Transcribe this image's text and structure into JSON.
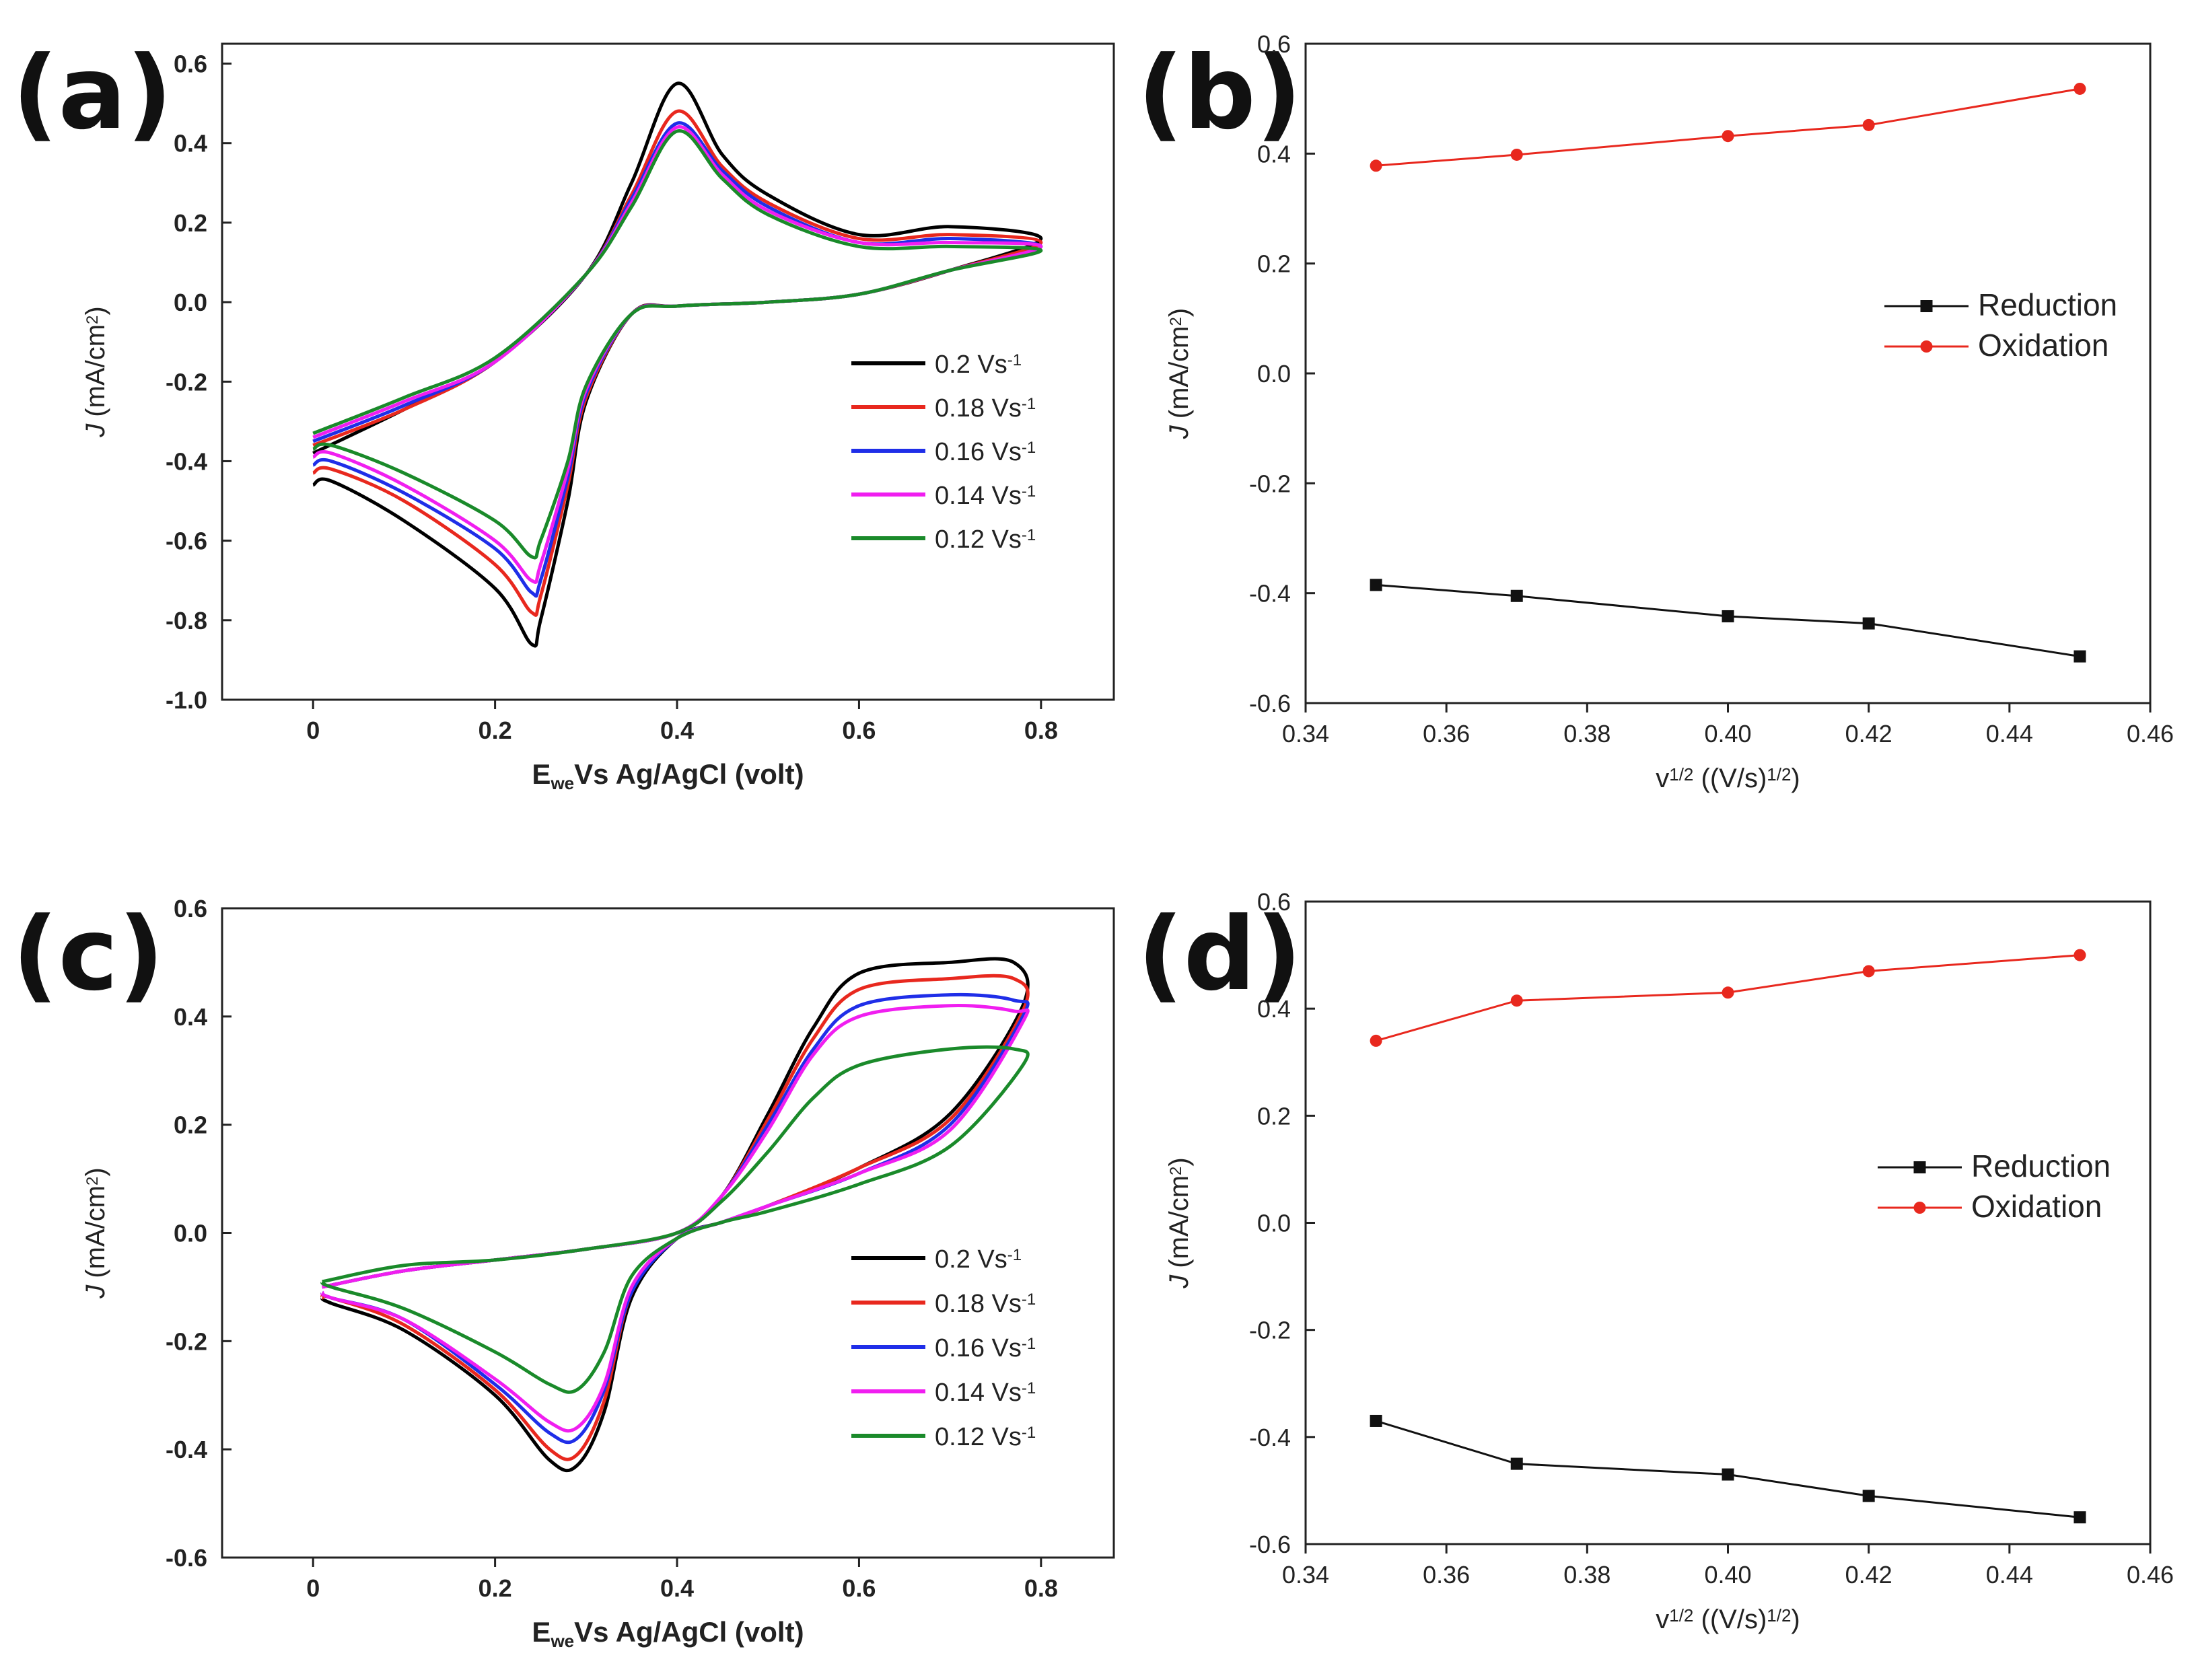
{
  "chart_data": [
    {
      "panel": "(a)",
      "type": "line",
      "subtype": "cyclic-voltammogram",
      "xlabel_parts": [
        "E",
        "we",
        "Vs Ag/AgCl (volt)"
      ],
      "ylabel_parts": [
        "J",
        "(mA/cm",
        "2",
        ")"
      ],
      "xlim": [
        -0.1,
        0.88
      ],
      "ylim": [
        -1.0,
        0.65
      ],
      "xticks": [
        0,
        0.2,
        0.4,
        0.6,
        0.8
      ],
      "xtick_labels": [
        "0",
        "0.2",
        "0.4",
        "0.6",
        "0.8"
      ],
      "yticks": [
        0.6,
        0.4,
        0.2,
        0.0,
        -0.2,
        -0.4,
        -0.6,
        -0.8,
        -1.0
      ],
      "ytick_labels": [
        "0.6",
        "0.4",
        "0.2",
        "0.0",
        "-0.2",
        "-0.4",
        "-0.6",
        "-0.8",
        "-1.0"
      ],
      "legend_position": "center-right",
      "series": [
        {
          "name": "0.2 Vs",
          "sup": "-1",
          "color": "#000000",
          "x": [
            0.0,
            0.1,
            0.2,
            0.3,
            0.35,
            0.4,
            0.45,
            0.5,
            0.6,
            0.7,
            0.8,
            0.7,
            0.6,
            0.5,
            0.4,
            0.35,
            0.3,
            0.28,
            0.25,
            0.24,
            0.2,
            0.1,
            0.02,
            0.0
          ],
          "y": [
            -0.38,
            -0.27,
            -0.15,
            0.07,
            0.3,
            0.55,
            0.37,
            0.27,
            0.17,
            0.19,
            0.16,
            0.08,
            0.02,
            0.0,
            -0.01,
            -0.03,
            -0.25,
            -0.5,
            -0.8,
            -0.86,
            -0.72,
            -0.55,
            -0.45,
            -0.46
          ]
        },
        {
          "name": "0.18 Vs",
          "sup": "-1",
          "color": "#e8281e",
          "x": [
            0.0,
            0.1,
            0.2,
            0.3,
            0.35,
            0.4,
            0.45,
            0.5,
            0.6,
            0.7,
            0.8,
            0.7,
            0.6,
            0.5,
            0.4,
            0.35,
            0.3,
            0.28,
            0.25,
            0.24,
            0.2,
            0.1,
            0.02,
            0.0
          ],
          "y": [
            -0.36,
            -0.27,
            -0.15,
            0.07,
            0.27,
            0.48,
            0.34,
            0.25,
            0.16,
            0.17,
            0.15,
            0.08,
            0.02,
            0.0,
            -0.01,
            -0.03,
            -0.24,
            -0.46,
            -0.74,
            -0.78,
            -0.66,
            -0.5,
            -0.42,
            -0.43
          ]
        },
        {
          "name": "0.16 Vs",
          "sup": "-1",
          "color": "#1f2ee8",
          "x": [
            0.0,
            0.1,
            0.2,
            0.3,
            0.35,
            0.4,
            0.45,
            0.5,
            0.6,
            0.7,
            0.8,
            0.7,
            0.6,
            0.5,
            0.4,
            0.35,
            0.3,
            0.28,
            0.25,
            0.24,
            0.2,
            0.1,
            0.02,
            0.0
          ],
          "y": [
            -0.35,
            -0.26,
            -0.15,
            0.07,
            0.26,
            0.45,
            0.33,
            0.24,
            0.15,
            0.16,
            0.14,
            0.08,
            0.02,
            0.0,
            -0.01,
            -0.03,
            -0.23,
            -0.44,
            -0.7,
            -0.73,
            -0.62,
            -0.48,
            -0.4,
            -0.41
          ]
        },
        {
          "name": "0.14 Vs",
          "sup": "-1",
          "color": "#f01ef0",
          "x": [
            0.0,
            0.1,
            0.2,
            0.3,
            0.35,
            0.4,
            0.45,
            0.5,
            0.6,
            0.7,
            0.8,
            0.7,
            0.6,
            0.5,
            0.4,
            0.35,
            0.3,
            0.28,
            0.25,
            0.24,
            0.2,
            0.1,
            0.02,
            0.0
          ],
          "y": [
            -0.34,
            -0.25,
            -0.15,
            0.07,
            0.25,
            0.44,
            0.32,
            0.23,
            0.15,
            0.15,
            0.14,
            0.08,
            0.02,
            0.0,
            -0.01,
            -0.03,
            -0.22,
            -0.42,
            -0.66,
            -0.7,
            -0.6,
            -0.46,
            -0.38,
            -0.39
          ]
        },
        {
          "name": "0.12 Vs",
          "sup": "-1",
          "color": "#1a8a2a",
          "x": [
            0.0,
            0.1,
            0.2,
            0.3,
            0.35,
            0.4,
            0.45,
            0.5,
            0.6,
            0.7,
            0.8,
            0.7,
            0.6,
            0.5,
            0.4,
            0.35,
            0.3,
            0.28,
            0.25,
            0.24,
            0.2,
            0.1,
            0.02,
            0.0
          ],
          "y": [
            -0.33,
            -0.24,
            -0.14,
            0.07,
            0.24,
            0.43,
            0.31,
            0.22,
            0.14,
            0.14,
            0.13,
            0.08,
            0.02,
            0.0,
            -0.01,
            -0.03,
            -0.21,
            -0.4,
            -0.6,
            -0.64,
            -0.55,
            -0.43,
            -0.36,
            -0.37
          ]
        }
      ]
    },
    {
      "panel": "(b)",
      "type": "line",
      "xlabel_parts": [
        "v",
        "1/2",
        " ((V/s)",
        "1/2",
        ")"
      ],
      "ylabel_parts": [
        "J",
        "(mA/cm",
        "2",
        ")"
      ],
      "xlim": [
        0.34,
        0.46
      ],
      "ylim": [
        -0.6,
        0.6
      ],
      "xticks": [
        0.34,
        0.36,
        0.38,
        0.4,
        0.42,
        0.44,
        0.46
      ],
      "xtick_labels": [
        "0.34",
        "0.36",
        "0.38",
        "0.40",
        "0.42",
        "0.44",
        "0.46"
      ],
      "yticks": [
        0.6,
        0.4,
        0.2,
        0.0,
        -0.2,
        -0.4,
        -0.6
      ],
      "ytick_labels": [
        "0.6",
        "0.4",
        "0.2",
        "0.0",
        "-0.2",
        "-0.4",
        "-0.6"
      ],
      "legend_position": "center-right",
      "series": [
        {
          "name": "Reduction",
          "color": "#111111",
          "marker": "square",
          "x": [
            0.35,
            0.37,
            0.4,
            0.42,
            0.45
          ],
          "y": [
            -0.385,
            -0.405,
            -0.442,
            -0.455,
            -0.515
          ]
        },
        {
          "name": "Oxidation",
          "color": "#e8281e",
          "marker": "circle",
          "x": [
            0.35,
            0.37,
            0.4,
            0.42,
            0.45
          ],
          "y": [
            0.378,
            0.398,
            0.432,
            0.452,
            0.518
          ]
        }
      ]
    },
    {
      "panel": "(c)",
      "type": "line",
      "subtype": "cyclic-voltammogram",
      "xlabel_parts": [
        "E",
        "we",
        "Vs Ag/AgCl (volt)"
      ],
      "ylabel_parts": [
        "J",
        "(mA/cm",
        "2",
        ")"
      ],
      "xlim": [
        -0.1,
        0.88
      ],
      "ylim": [
        -0.6,
        0.6
      ],
      "xticks": [
        0,
        0.2,
        0.4,
        0.6,
        0.8
      ],
      "xtick_labels": [
        "0",
        "0.2",
        "0.4",
        "0.6",
        "0.8"
      ],
      "yticks": [
        0.6,
        0.4,
        0.2,
        0.0,
        -0.2,
        -0.4,
        -0.6
      ],
      "ytick_labels": [
        "0.6",
        "0.4",
        "0.2",
        "0.0",
        "-0.2",
        "-0.4",
        "-0.6"
      ],
      "legend_position": "bottom-right",
      "series": [
        {
          "name": "0.2 Vs",
          "sup": "-1",
          "color": "#000000",
          "x": [
            0.01,
            0.1,
            0.2,
            0.3,
            0.4,
            0.45,
            0.5,
            0.55,
            0.6,
            0.7,
            0.77,
            0.78,
            0.7,
            0.6,
            0.5,
            0.45,
            0.4,
            0.35,
            0.32,
            0.29,
            0.26,
            0.2,
            0.1,
            0.02,
            0.01
          ],
          "y": [
            -0.1,
            -0.07,
            -0.05,
            -0.03,
            0.0,
            0.07,
            0.22,
            0.38,
            0.48,
            0.5,
            0.5,
            0.42,
            0.22,
            0.12,
            0.05,
            0.02,
            -0.01,
            -0.12,
            -0.33,
            -0.43,
            -0.42,
            -0.3,
            -0.18,
            -0.13,
            -0.12
          ]
        },
        {
          "name": "0.18 Vs",
          "sup": "-1",
          "color": "#e8281e",
          "x": [
            0.01,
            0.1,
            0.2,
            0.3,
            0.4,
            0.45,
            0.5,
            0.55,
            0.6,
            0.7,
            0.77,
            0.78,
            0.7,
            0.6,
            0.5,
            0.45,
            0.4,
            0.35,
            0.32,
            0.29,
            0.26,
            0.2,
            0.1,
            0.02,
            0.01
          ],
          "y": [
            -0.1,
            -0.07,
            -0.05,
            -0.03,
            0.0,
            0.07,
            0.21,
            0.36,
            0.45,
            0.47,
            0.47,
            0.41,
            0.21,
            0.12,
            0.05,
            0.02,
            -0.01,
            -0.11,
            -0.31,
            -0.41,
            -0.4,
            -0.29,
            -0.17,
            -0.12,
            -0.12
          ]
        },
        {
          "name": "0.16 Vs",
          "sup": "-1",
          "color": "#1f2ee8",
          "x": [
            0.01,
            0.1,
            0.2,
            0.3,
            0.4,
            0.45,
            0.5,
            0.55,
            0.6,
            0.7,
            0.77,
            0.78,
            0.7,
            0.6,
            0.5,
            0.45,
            0.4,
            0.35,
            0.32,
            0.29,
            0.26,
            0.2,
            0.1,
            0.02,
            0.01
          ],
          "y": [
            -0.1,
            -0.07,
            -0.05,
            -0.03,
            0.0,
            0.07,
            0.2,
            0.34,
            0.42,
            0.44,
            0.43,
            0.4,
            0.2,
            0.11,
            0.05,
            0.02,
            -0.01,
            -0.11,
            -0.29,
            -0.38,
            -0.37,
            -0.28,
            -0.16,
            -0.12,
            -0.11
          ]
        },
        {
          "name": "0.14 Vs",
          "sup": "-1",
          "color": "#f01ef0",
          "x": [
            0.01,
            0.1,
            0.2,
            0.3,
            0.4,
            0.45,
            0.5,
            0.55,
            0.6,
            0.7,
            0.77,
            0.78,
            0.7,
            0.6,
            0.5,
            0.45,
            0.4,
            0.35,
            0.32,
            0.29,
            0.26,
            0.2,
            0.1,
            0.02,
            0.01
          ],
          "y": [
            -0.1,
            -0.07,
            -0.05,
            -0.03,
            0.0,
            0.07,
            0.19,
            0.33,
            0.4,
            0.42,
            0.41,
            0.39,
            0.19,
            0.11,
            0.05,
            0.02,
            -0.01,
            -0.1,
            -0.28,
            -0.36,
            -0.35,
            -0.27,
            -0.16,
            -0.12,
            -0.11
          ]
        },
        {
          "name": "0.12 Vs",
          "sup": "-1",
          "color": "#1a8a2a",
          "x": [
            0.01,
            0.1,
            0.2,
            0.3,
            0.4,
            0.45,
            0.5,
            0.55,
            0.6,
            0.7,
            0.77,
            0.78,
            0.7,
            0.6,
            0.5,
            0.45,
            0.4,
            0.35,
            0.32,
            0.29,
            0.26,
            0.2,
            0.1,
            0.02,
            0.01
          ],
          "y": [
            -0.09,
            -0.06,
            -0.05,
            -0.03,
            0.0,
            0.06,
            0.15,
            0.25,
            0.31,
            0.34,
            0.34,
            0.31,
            0.16,
            0.09,
            0.04,
            0.02,
            -0.01,
            -0.08,
            -0.22,
            -0.29,
            -0.28,
            -0.22,
            -0.14,
            -0.1,
            -0.09
          ]
        }
      ]
    },
    {
      "panel": "(d)",
      "type": "line",
      "xlabel_parts": [
        "v",
        "1/2",
        " ((V/s)",
        "1/2",
        ")"
      ],
      "ylabel_parts": [
        "J",
        "(mA/cm",
        "2",
        ")"
      ],
      "xlim": [
        0.34,
        0.46
      ],
      "ylim": [
        -0.6,
        0.6
      ],
      "xticks": [
        0.34,
        0.36,
        0.38,
        0.4,
        0.42,
        0.44,
        0.46
      ],
      "xtick_labels": [
        "0.34",
        "0.36",
        "0.38",
        "0.40",
        "0.42",
        "0.44",
        "0.46"
      ],
      "yticks": [
        0.6,
        0.4,
        0.2,
        0.0,
        -0.2,
        -0.4,
        -0.6
      ],
      "ytick_labels": [
        "0.6",
        "0.4",
        "0.2",
        "0.0",
        "-0.2",
        "-0.4",
        "-0.6"
      ],
      "legend_position": "center-right",
      "series": [
        {
          "name": "Reduction",
          "color": "#111111",
          "marker": "square",
          "x": [
            0.35,
            0.37,
            0.4,
            0.42,
            0.45
          ],
          "y": [
            -0.37,
            -0.45,
            -0.47,
            -0.51,
            -0.55
          ]
        },
        {
          "name": "Oxidation",
          "color": "#e8281e",
          "marker": "circle",
          "x": [
            0.35,
            0.37,
            0.4,
            0.42,
            0.45
          ],
          "y": [
            0.34,
            0.415,
            0.43,
            0.47,
            0.5
          ]
        }
      ]
    }
  ]
}
